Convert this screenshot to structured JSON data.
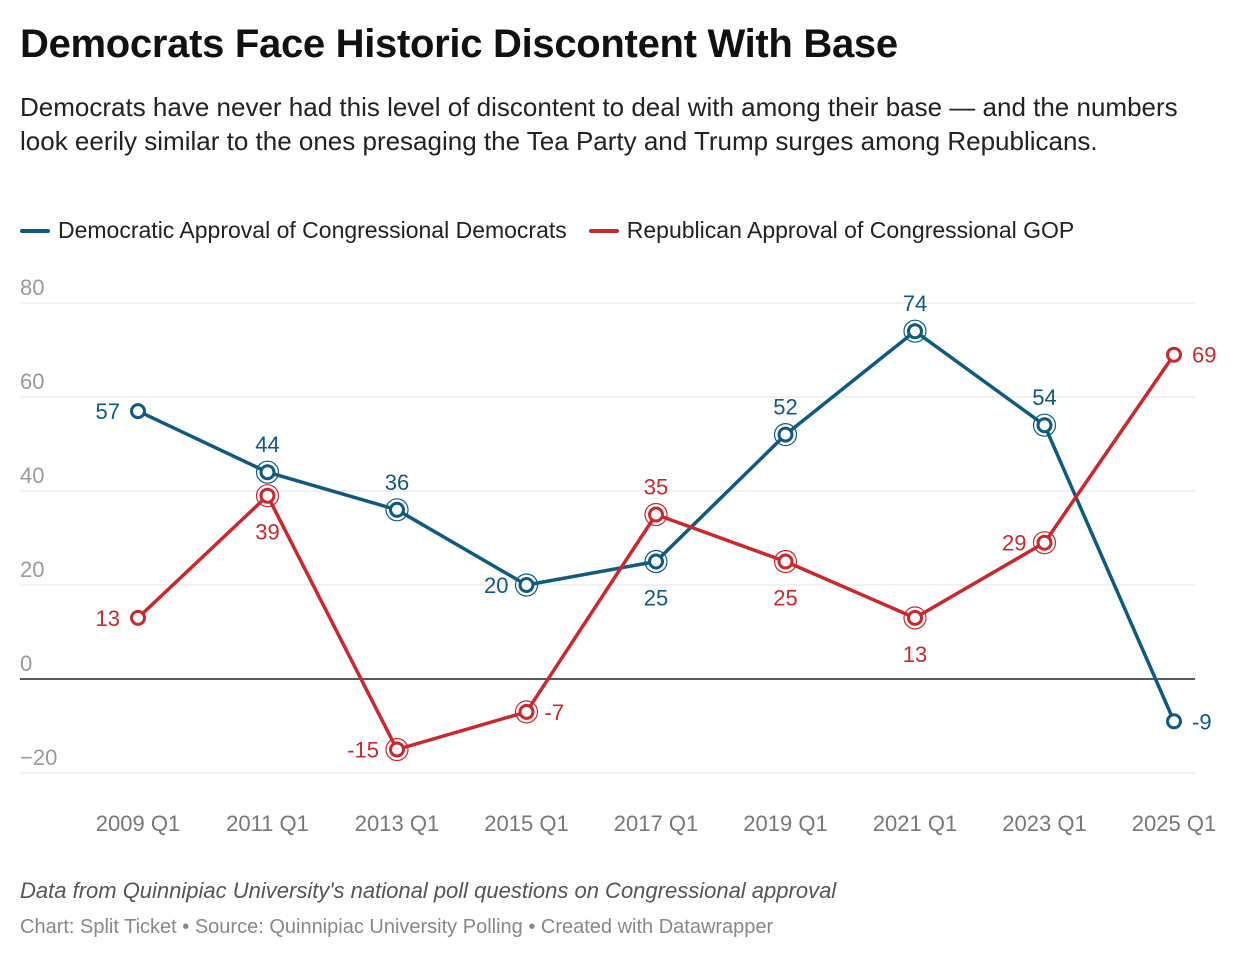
{
  "title": "Democrats Face Historic Discontent With Base",
  "subtitle": "Democrats have never had this level of discontent to deal with among their base — and the numbers look eerily similar to the ones presaging the Tea Party and Trump surges among Republicans.",
  "note": "Data from Quinnipiac University's national poll questions on Congressional approval",
  "credit": "Chart: Split Ticket • Source: Quinnipiac University Polling • Created with Datawrapper",
  "colors": {
    "democratic": "#0f5a7f",
    "republican": "#c9282d"
  },
  "chart_data": {
    "type": "line",
    "title": "Democrats Face Historic Discontent With Base",
    "xlabel": "",
    "ylabel": "",
    "categories": [
      "2009 Q1",
      "2011 Q1",
      "2013 Q1",
      "2015 Q1",
      "2017 Q1",
      "2019 Q1",
      "2021 Q1",
      "2023 Q1",
      "2025 Q1"
    ],
    "ylim": [
      -20,
      80
    ],
    "yticks": [
      80,
      60,
      40,
      20,
      0,
      -20
    ],
    "ytick_labels": [
      "80",
      "60",
      "40",
      "20",
      "0",
      "−20"
    ],
    "grid": true,
    "legend_position": "top-left",
    "series": [
      {
        "name": "Democratic Approval of Congressional Democrats",
        "color": "#0f5a7f",
        "values": [
          57,
          44,
          36,
          20,
          25,
          52,
          74,
          54,
          -9
        ],
        "label_positions": [
          "left",
          "above",
          "above",
          "left",
          "below",
          "above",
          "above",
          "above",
          "right"
        ]
      },
      {
        "name": "Republican Approval of Congressional GOP",
        "color": "#c9282d",
        "values": [
          13,
          39,
          -15,
          -7,
          35,
          25,
          13,
          29,
          69
        ],
        "label_positions": [
          "left",
          "below",
          "left",
          "right",
          "above",
          "below",
          "below",
          "left",
          "right"
        ]
      }
    ]
  }
}
